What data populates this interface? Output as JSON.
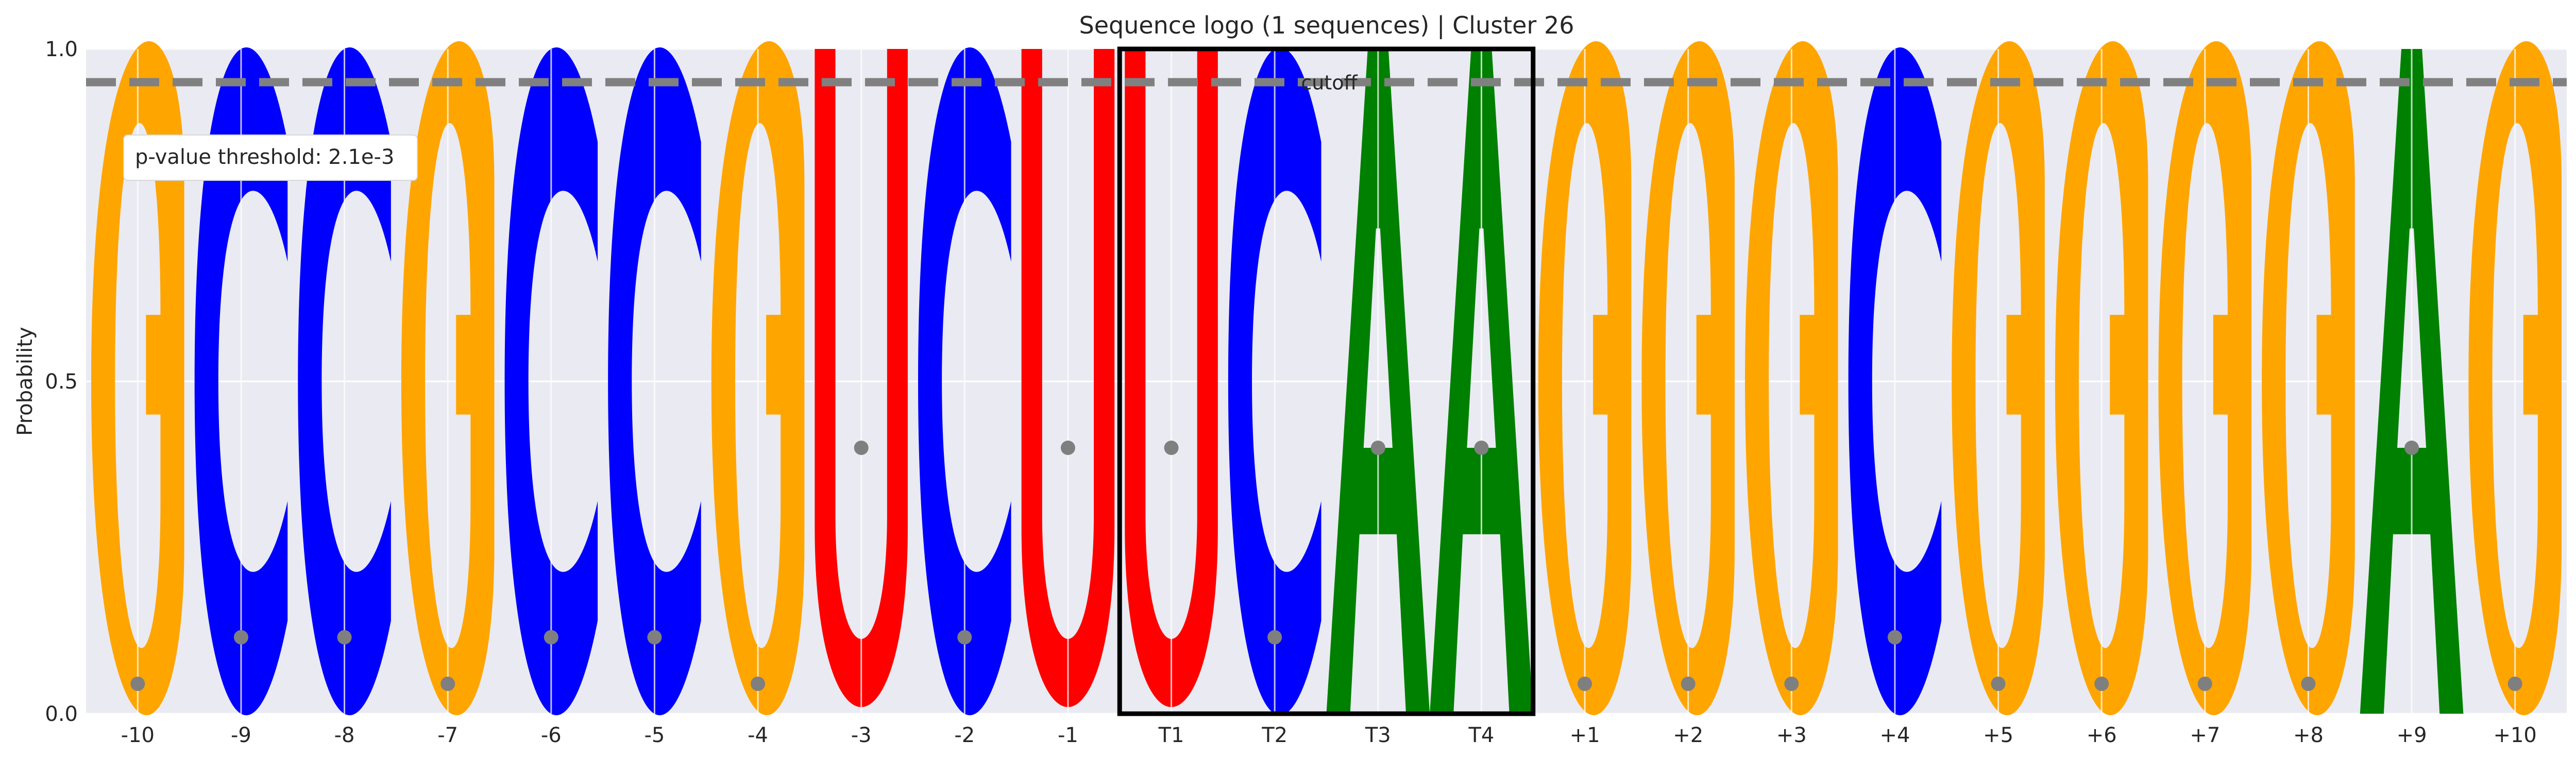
{
  "chart_data": {
    "type": "sequence-logo",
    "title": "Sequence logo (1 sequences) | Cluster 26",
    "ylabel": "Probability",
    "xlabel": "",
    "ylim": [
      0,
      1
    ],
    "yticks": [
      "0.0",
      "0.5",
      "1.0"
    ],
    "threshold_label": "p-value threshold: 2.1e-3",
    "reference_label": "cutoff",
    "reference_value": 0.95,
    "highlight_range": [
      "T1",
      "T4"
    ],
    "positions": [
      {
        "label": "-10",
        "letter": "G",
        "probability": 1.0
      },
      {
        "label": "-9",
        "letter": "C",
        "probability": 1.0
      },
      {
        "label": "-8",
        "letter": "C",
        "probability": 1.0
      },
      {
        "label": "-7",
        "letter": "G",
        "probability": 1.0
      },
      {
        "label": "-6",
        "letter": "C",
        "probability": 1.0
      },
      {
        "label": "-5",
        "letter": "C",
        "probability": 1.0
      },
      {
        "label": "-4",
        "letter": "G",
        "probability": 1.0
      },
      {
        "label": "-3",
        "letter": "U",
        "probability": 1.0
      },
      {
        "label": "-2",
        "letter": "C",
        "probability": 1.0
      },
      {
        "label": "-1",
        "letter": "U",
        "probability": 1.0
      },
      {
        "label": "T1",
        "letter": "U",
        "probability": 1.0
      },
      {
        "label": "T2",
        "letter": "C",
        "probability": 1.0
      },
      {
        "label": "T3",
        "letter": "A",
        "probability": 1.0
      },
      {
        "label": "T4",
        "letter": "A",
        "probability": 1.0
      },
      {
        "label": "+1",
        "letter": "G",
        "probability": 1.0
      },
      {
        "label": "+2",
        "letter": "G",
        "probability": 1.0
      },
      {
        "label": "+3",
        "letter": "G",
        "probability": 1.0
      },
      {
        "label": "+4",
        "letter": "C",
        "probability": 1.0
      },
      {
        "label": "+5",
        "letter": "G",
        "probability": 1.0
      },
      {
        "label": "+6",
        "letter": "G",
        "probability": 1.0
      },
      {
        "label": "+7",
        "letter": "G",
        "probability": 1.0
      },
      {
        "label": "+8",
        "letter": "G",
        "probability": 1.0
      },
      {
        "label": "+9",
        "letter": "A",
        "probability": 1.0
      },
      {
        "label": "+10",
        "letter": "G",
        "probability": 1.0
      }
    ],
    "colors": {
      "A": "#008000",
      "C": "#0000ff",
      "G": "#ffa500",
      "U": "#ff0000"
    },
    "grid": true
  }
}
